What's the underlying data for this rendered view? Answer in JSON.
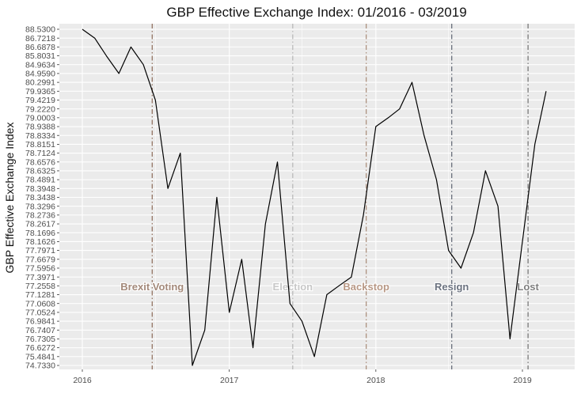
{
  "chart_data": {
    "type": "line",
    "title": "GBP Effective Exchange Index: 01/2016 - 03/2019",
    "xlabel": "",
    "ylabel": "GBP Effective Exchange Index",
    "x_ticks": [
      "2016",
      "2017",
      "2018",
      "2019"
    ],
    "y_ticks": [
      "74.7330",
      "75.4841",
      "76.6272",
      "76.7305",
      "76.7407",
      "76.9841",
      "77.0524",
      "77.0608",
      "77.1281",
      "77.2558",
      "77.3971",
      "77.5956",
      "77.6679",
      "77.7971",
      "78.1626",
      "78.1696",
      "78.2617",
      "78.2736",
      "78.3296",
      "78.3438",
      "78.3948",
      "78.4891",
      "78.6325",
      "78.6576",
      "78.7124",
      "78.8151",
      "78.8334",
      "78.9388",
      "79.0003",
      "79.2220",
      "79.4219",
      "79.9365",
      "80.2991",
      "84.9590",
      "84.9634",
      "85.8031",
      "86.6878",
      "86.7218",
      "88.5300"
    ],
    "x": [
      "2016-01",
      "2016-02",
      "2016-03",
      "2016-04",
      "2016-05",
      "2016-06",
      "2016-07",
      "2016-08",
      "2016-09",
      "2016-10",
      "2016-11",
      "2016-12",
      "2017-01",
      "2017-02",
      "2017-03",
      "2017-04",
      "2017-05",
      "2017-06",
      "2017-07",
      "2017-08",
      "2017-09",
      "2017-10",
      "2017-11",
      "2017-12",
      "2018-01",
      "2018-02",
      "2018-03",
      "2018-04",
      "2018-05",
      "2018-06",
      "2018-07",
      "2018-08",
      "2018-09",
      "2018-10",
      "2018-11",
      "2018-12",
      "2019-01",
      "2019-02",
      "2019-03"
    ],
    "series": [
      {
        "values": [
          88.53,
          86.7218,
          85.8031,
          84.959,
          86.6878,
          84.9634,
          79.4219,
          78.3948,
          78.7124,
          74.733,
          76.7407,
          78.3438,
          77.0524,
          77.6679,
          76.6272,
          78.2617,
          78.6576,
          77.0608,
          76.9841,
          75.4841,
          77.1281,
          77.2558,
          77.3971,
          78.2736,
          78.9388,
          79.0003,
          79.222,
          80.2991,
          78.8334,
          78.4891,
          77.7971,
          77.5956,
          78.1696,
          78.6325,
          78.3296,
          76.7305,
          78.1626,
          78.8151,
          79.9365
        ]
      }
    ],
    "events": [
      {
        "label": "Brexit Voting",
        "date": "2016-06-23",
        "color": "#8b6a57",
        "text_color": "#a3897a"
      },
      {
        "label": "Election",
        "date": "2017-06-08",
        "color": "#b5b5b5",
        "text_color": "#c8c8c8"
      },
      {
        "label": "Backstop",
        "date": "2017-12-08",
        "color": "#a88a77",
        "text_color": "#b89885"
      },
      {
        "label": "Resign",
        "date": "2018-07-09",
        "color": "#5c6370",
        "text_color": "#6c7380"
      },
      {
        "label": "Lost",
        "date": "2019-01-15",
        "color": "#6f6f6f",
        "text_color": "#7f7f7f"
      }
    ],
    "grid": true,
    "legend": "none",
    "panel_background": "#ebebeb",
    "line_color": "#000000"
  }
}
